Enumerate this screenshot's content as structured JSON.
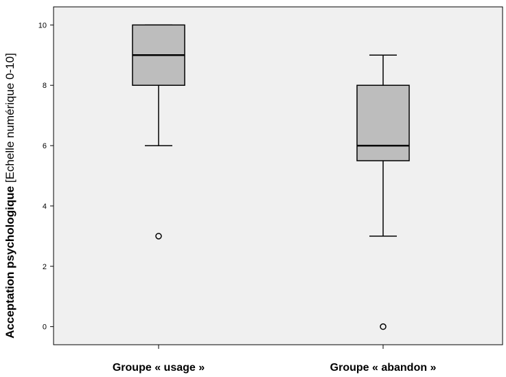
{
  "chart_data": {
    "type": "boxplot",
    "ylabel_bold": "Acceptation psychologique",
    "ylabel_rest": " [Echelle numérique 0-10]",
    "categories": [
      "Groupe « usage »",
      "Groupe « abandon »"
    ],
    "ylim": [
      -0.6,
      10.6
    ],
    "yticks": [
      0,
      2,
      4,
      6,
      8,
      10
    ],
    "grid": false,
    "boxes": [
      {
        "category": "Groupe « usage »",
        "whisker_low": 6,
        "q1": 8,
        "median": 9,
        "q3": 10,
        "whisker_high": 10,
        "outliers": [
          3
        ]
      },
      {
        "category": "Groupe « abandon »",
        "whisker_low": 3,
        "q1": 5.5,
        "median": 6,
        "q3": 8,
        "whisker_high": 9,
        "outliers": [
          0
        ]
      }
    ],
    "colors": {
      "plot_background": "#f0f0f0",
      "box_fill": "#bdbdbd",
      "stroke": "#000000"
    }
  }
}
